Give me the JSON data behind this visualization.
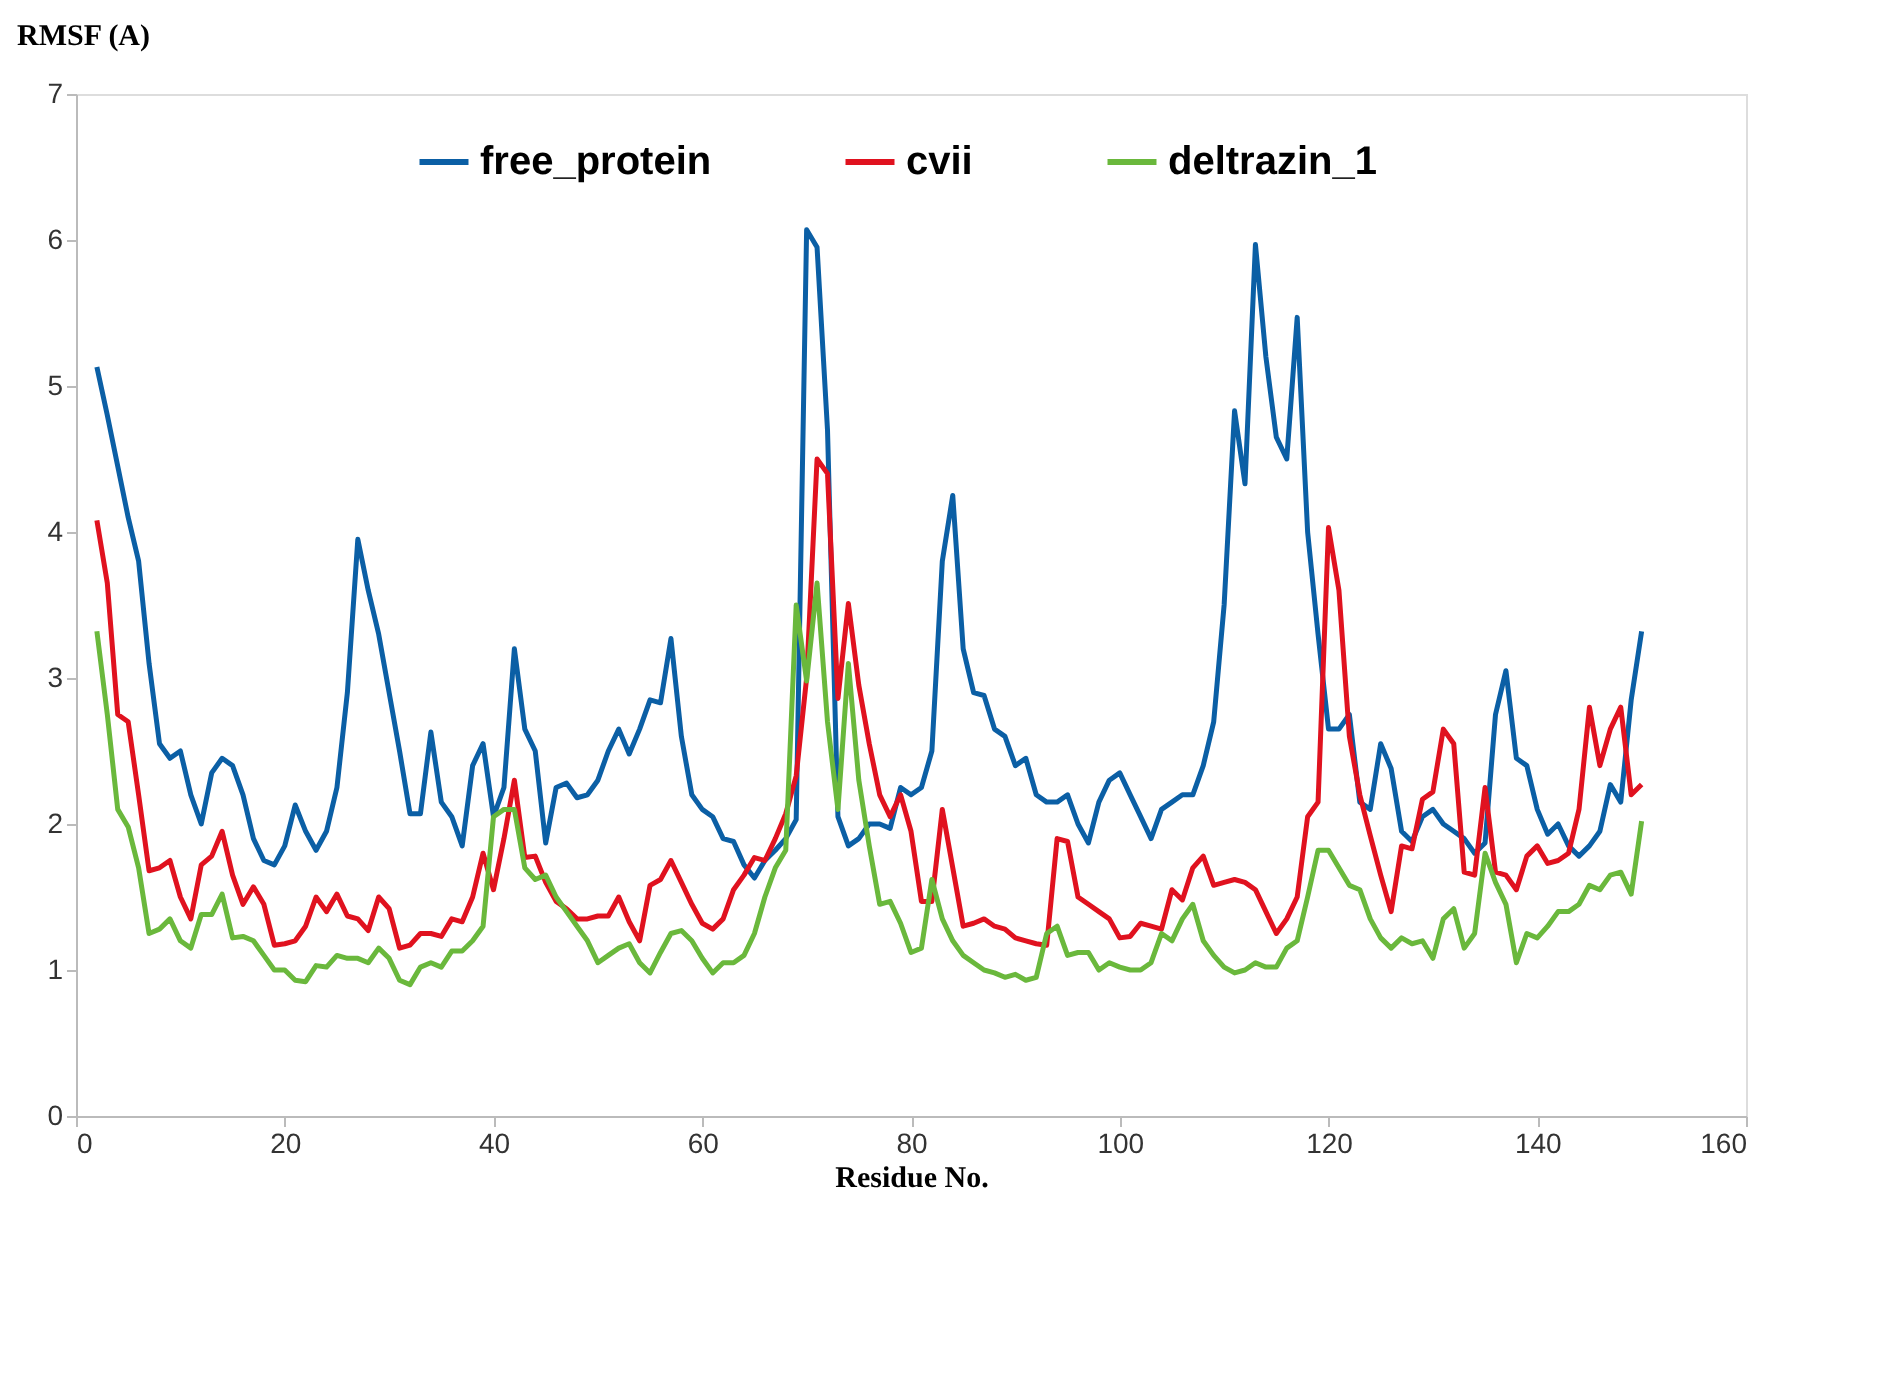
{
  "chart_data": {
    "type": "line",
    "xlabel": "Residue No.",
    "ylabel": "RMSF (A)",
    "x": [
      2,
      3,
      4,
      5,
      6,
      7,
      8,
      9,
      10,
      11,
      12,
      13,
      14,
      15,
      16,
      17,
      18,
      19,
      20,
      21,
      22,
      23,
      24,
      25,
      26,
      27,
      28,
      29,
      30,
      31,
      32,
      33,
      34,
      35,
      36,
      37,
      38,
      39,
      40,
      41,
      42,
      43,
      44,
      45,
      46,
      47,
      48,
      49,
      50,
      51,
      52,
      53,
      54,
      55,
      56,
      57,
      58,
      59,
      60,
      61,
      62,
      63,
      64,
      65,
      66,
      67,
      68,
      69,
      70,
      71,
      72,
      73,
      74,
      75,
      76,
      77,
      78,
      79,
      80,
      81,
      82,
      83,
      84,
      85,
      86,
      87,
      88,
      89,
      90,
      91,
      92,
      93,
      94,
      95,
      96,
      97,
      98,
      99,
      100,
      101,
      102,
      103,
      104,
      105,
      106,
      107,
      108,
      109,
      110,
      111,
      112,
      113,
      114,
      115,
      116,
      117,
      118,
      119,
      120,
      121,
      122,
      123,
      124,
      125,
      126,
      127,
      128,
      129,
      130,
      131,
      132,
      133,
      134,
      135,
      136,
      137,
      138,
      139,
      140,
      141,
      142,
      143,
      144,
      145,
      146,
      147,
      148,
      149,
      150
    ],
    "series": [
      {
        "name": "free_protein",
        "color": "#0b5fa5",
        "values": [
          5.13,
          4.8,
          4.45,
          4.1,
          3.8,
          3.1,
          2.55,
          2.45,
          2.5,
          2.2,
          2.0,
          2.35,
          2.45,
          2.4,
          2.2,
          1.9,
          1.75,
          1.72,
          1.85,
          2.13,
          1.95,
          1.82,
          1.95,
          2.25,
          2.9,
          3.95,
          3.6,
          3.3,
          2.9,
          2.5,
          2.07,
          2.07,
          2.63,
          2.15,
          2.05,
          1.85,
          2.4,
          2.55,
          2.05,
          2.25,
          3.2,
          2.65,
          2.5,
          1.87,
          2.25,
          2.28,
          2.18,
          2.2,
          2.3,
          2.5,
          2.65,
          2.48,
          2.65,
          2.85,
          2.83,
          3.27,
          2.6,
          2.2,
          2.1,
          2.05,
          1.9,
          1.88,
          1.72,
          1.63,
          1.75,
          1.82,
          1.9,
          2.03,
          6.07,
          5.95,
          4.7,
          2.05,
          1.85,
          1.9,
          2.0,
          2.0,
          1.97,
          2.25,
          2.2,
          2.25,
          2.5,
          3.8,
          4.25,
          3.2,
          2.9,
          2.88,
          2.65,
          2.6,
          2.4,
          2.45,
          2.2,
          2.15,
          2.15,
          2.2,
          2.0,
          1.87,
          2.15,
          2.3,
          2.35,
          2.2,
          2.05,
          1.9,
          2.1,
          2.15,
          2.2,
          2.2,
          2.4,
          2.7,
          3.5,
          4.83,
          4.33,
          5.97,
          5.2,
          4.65,
          4.5,
          5.47,
          4.0,
          3.3,
          2.65,
          2.65,
          2.75,
          2.15,
          2.1,
          2.55,
          2.38,
          1.95,
          1.88,
          2.05,
          2.1,
          2.0,
          1.95,
          1.9,
          1.8,
          1.87,
          2.75,
          3.05,
          2.45,
          2.4,
          2.1,
          1.93,
          2.0,
          1.85,
          1.78,
          1.85,
          1.95,
          2.27,
          2.15,
          2.85,
          3.32
        ]
      },
      {
        "name": "cvii",
        "color": "#e0121f",
        "values": [
          4.08,
          3.65,
          2.75,
          2.7,
          2.2,
          1.68,
          1.7,
          1.75,
          1.5,
          1.35,
          1.72,
          1.78,
          1.95,
          1.65,
          1.45,
          1.57,
          1.45,
          1.17,
          1.18,
          1.2,
          1.3,
          1.5,
          1.4,
          1.52,
          1.37,
          1.35,
          1.27,
          1.5,
          1.42,
          1.15,
          1.17,
          1.25,
          1.25,
          1.23,
          1.35,
          1.33,
          1.5,
          1.8,
          1.55,
          1.9,
          2.3,
          1.77,
          1.78,
          1.6,
          1.47,
          1.42,
          1.35,
          1.35,
          1.37,
          1.37,
          1.5,
          1.33,
          1.2,
          1.58,
          1.62,
          1.75,
          1.6,
          1.45,
          1.32,
          1.28,
          1.35,
          1.55,
          1.65,
          1.77,
          1.75,
          1.9,
          2.07,
          2.33,
          3.0,
          4.5,
          4.4,
          2.86,
          3.51,
          2.95,
          2.55,
          2.2,
          2.05,
          2.2,
          1.95,
          1.47,
          1.47,
          2.1,
          1.7,
          1.3,
          1.32,
          1.35,
          1.3,
          1.28,
          1.22,
          1.2,
          1.18,
          1.17,
          1.9,
          1.88,
          1.5,
          1.45,
          1.4,
          1.35,
          1.22,
          1.23,
          1.32,
          1.3,
          1.28,
          1.55,
          1.48,
          1.7,
          1.78,
          1.58,
          1.6,
          1.62,
          1.6,
          1.55,
          1.4,
          1.25,
          1.35,
          1.5,
          2.05,
          2.15,
          4.03,
          3.6,
          2.6,
          2.2,
          1.92,
          1.65,
          1.4,
          1.85,
          1.83,
          2.17,
          2.22,
          2.65,
          2.55,
          1.67,
          1.65,
          2.25,
          1.67,
          1.65,
          1.55,
          1.78,
          1.85,
          1.73,
          1.75,
          1.8,
          2.1,
          2.8,
          2.4,
          2.65,
          2.8,
          2.2,
          2.27
        ]
      },
      {
        "name": "deltrazin_1",
        "color": "#6ab83c",
        "values": [
          3.32,
          2.75,
          2.1,
          1.98,
          1.7,
          1.25,
          1.28,
          1.35,
          1.2,
          1.15,
          1.38,
          1.38,
          1.52,
          1.22,
          1.23,
          1.2,
          1.1,
          1.0,
          1.0,
          0.93,
          0.92,
          1.03,
          1.02,
          1.1,
          1.08,
          1.08,
          1.05,
          1.15,
          1.08,
          0.93,
          0.9,
          1.02,
          1.05,
          1.02,
          1.13,
          1.13,
          1.2,
          1.3,
          2.05,
          2.1,
          2.1,
          1.7,
          1.62,
          1.65,
          1.5,
          1.4,
          1.3,
          1.2,
          1.05,
          1.1,
          1.15,
          1.18,
          1.05,
          0.98,
          1.12,
          1.25,
          1.27,
          1.2,
          1.08,
          0.98,
          1.05,
          1.05,
          1.1,
          1.25,
          1.5,
          1.7,
          1.82,
          3.5,
          2.98,
          3.65,
          2.7,
          2.1,
          3.1,
          2.3,
          1.85,
          1.45,
          1.47,
          1.32,
          1.12,
          1.15,
          1.62,
          1.35,
          1.2,
          1.1,
          1.05,
          1.0,
          0.98,
          0.95,
          0.97,
          0.93,
          0.95,
          1.25,
          1.3,
          1.1,
          1.12,
          1.12,
          1.0,
          1.05,
          1.02,
          1.0,
          1.0,
          1.05,
          1.25,
          1.2,
          1.35,
          1.45,
          1.2,
          1.1,
          1.02,
          0.98,
          1.0,
          1.05,
          1.02,
          1.02,
          1.15,
          1.2,
          1.5,
          1.82,
          1.82,
          1.7,
          1.58,
          1.55,
          1.35,
          1.22,
          1.15,
          1.22,
          1.18,
          1.2,
          1.08,
          1.35,
          1.42,
          1.15,
          1.25,
          1.8,
          1.6,
          1.45,
          1.05,
          1.25,
          1.22,
          1.3,
          1.4,
          1.4,
          1.45,
          1.58,
          1.55,
          1.65,
          1.67,
          1.52,
          2.02
        ]
      }
    ],
    "xlim": [
      0,
      160
    ],
    "xticks": [
      0,
      20,
      40,
      60,
      80,
      100,
      120,
      140,
      160
    ],
    "ylim": [
      0,
      7
    ],
    "yticks": [
      0,
      1,
      2,
      3,
      4,
      5,
      6,
      7
    ],
    "grid": false,
    "legend": "top",
    "marker": "none",
    "line_style": "solid"
  }
}
